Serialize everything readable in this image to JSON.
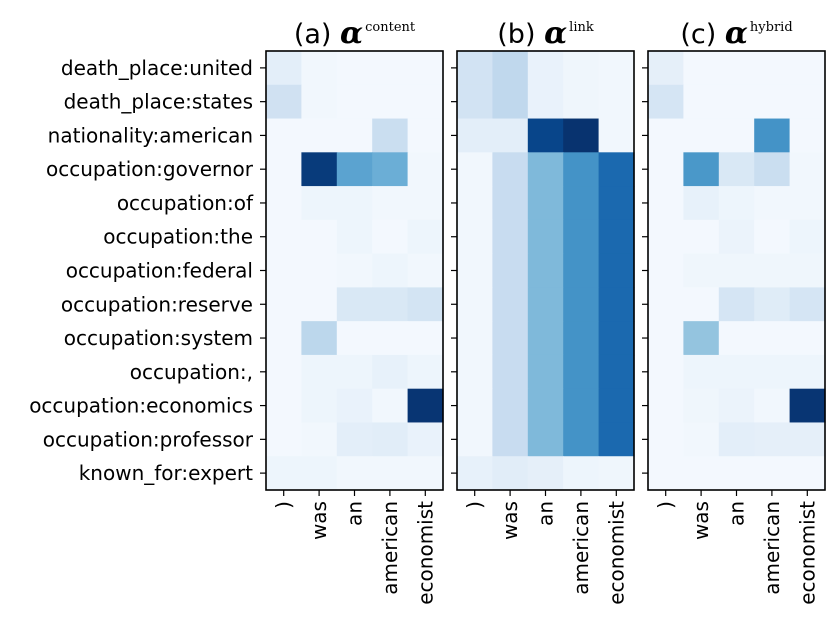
{
  "chart_data": {
    "type": "heatmap",
    "colormap": "Blues",
    "rows": [
      "death_place:united",
      "death_place:states",
      "nationality:american",
      "occupation:governor",
      "occupation:of",
      "occupation:the",
      "occupation:federal",
      "occupation:reserve",
      "occupation:system",
      "occupation:,",
      "occupation:economics",
      "occupation:professor",
      "known_for:expert"
    ],
    "columns": [
      ")",
      "was",
      "an",
      "american",
      "economist"
    ],
    "panels": [
      {
        "label": "(a)",
        "symbol": "α",
        "superscript": "content",
        "values": [
          [
            0.1,
            0.03,
            0.02,
            0.02,
            0.02
          ],
          [
            0.2,
            0.03,
            0.02,
            0.02,
            0.02
          ],
          [
            0.02,
            0.02,
            0.02,
            0.23,
            0.02
          ],
          [
            0.02,
            0.96,
            0.55,
            0.5,
            0.03
          ],
          [
            0.02,
            0.05,
            0.05,
            0.03,
            0.03
          ],
          [
            0.02,
            0.02,
            0.05,
            0.02,
            0.05
          ],
          [
            0.02,
            0.02,
            0.03,
            0.05,
            0.03
          ],
          [
            0.02,
            0.02,
            0.15,
            0.15,
            0.18
          ],
          [
            0.02,
            0.28,
            0.02,
            0.02,
            0.02
          ],
          [
            0.02,
            0.05,
            0.05,
            0.08,
            0.05
          ],
          [
            0.02,
            0.05,
            0.07,
            0.03,
            0.98
          ],
          [
            0.02,
            0.03,
            0.1,
            0.11,
            0.07
          ],
          [
            0.05,
            0.05,
            0.03,
            0.03,
            0.03
          ]
        ]
      },
      {
        "label": "(b)",
        "symbol": "α",
        "superscript": "link",
        "values": [
          [
            0.19,
            0.27,
            0.07,
            0.04,
            0.03
          ],
          [
            0.19,
            0.27,
            0.07,
            0.04,
            0.03
          ],
          [
            0.1,
            0.1,
            0.92,
            0.99,
            0.03
          ],
          [
            0.03,
            0.24,
            0.45,
            0.62,
            0.78
          ],
          [
            0.03,
            0.24,
            0.45,
            0.62,
            0.78
          ],
          [
            0.03,
            0.24,
            0.45,
            0.62,
            0.78
          ],
          [
            0.03,
            0.24,
            0.45,
            0.62,
            0.78
          ],
          [
            0.03,
            0.24,
            0.45,
            0.62,
            0.78
          ],
          [
            0.03,
            0.24,
            0.45,
            0.62,
            0.78
          ],
          [
            0.03,
            0.24,
            0.45,
            0.62,
            0.78
          ],
          [
            0.03,
            0.24,
            0.45,
            0.62,
            0.78
          ],
          [
            0.03,
            0.24,
            0.45,
            0.62,
            0.78
          ],
          [
            0.08,
            0.11,
            0.09,
            0.05,
            0.04
          ]
        ]
      },
      {
        "label": "(c)",
        "symbol": "α",
        "superscript": "hybrid",
        "values": [
          [
            0.09,
            0.02,
            0.02,
            0.02,
            0.02
          ],
          [
            0.17,
            0.02,
            0.02,
            0.02,
            0.02
          ],
          [
            0.02,
            0.02,
            0.02,
            0.62,
            0.02
          ],
          [
            0.02,
            0.6,
            0.15,
            0.23,
            0.03
          ],
          [
            0.02,
            0.08,
            0.05,
            0.03,
            0.03
          ],
          [
            0.02,
            0.02,
            0.06,
            0.02,
            0.05
          ],
          [
            0.02,
            0.04,
            0.04,
            0.04,
            0.04
          ],
          [
            0.02,
            0.02,
            0.17,
            0.12,
            0.17
          ],
          [
            0.02,
            0.4,
            0.02,
            0.02,
            0.02
          ],
          [
            0.02,
            0.05,
            0.05,
            0.05,
            0.05
          ],
          [
            0.02,
            0.04,
            0.06,
            0.03,
            0.98
          ],
          [
            0.02,
            0.03,
            0.1,
            0.09,
            0.09
          ],
          [
            0.02,
            0.02,
            0.02,
            0.02,
            0.02
          ]
        ]
      }
    ]
  }
}
